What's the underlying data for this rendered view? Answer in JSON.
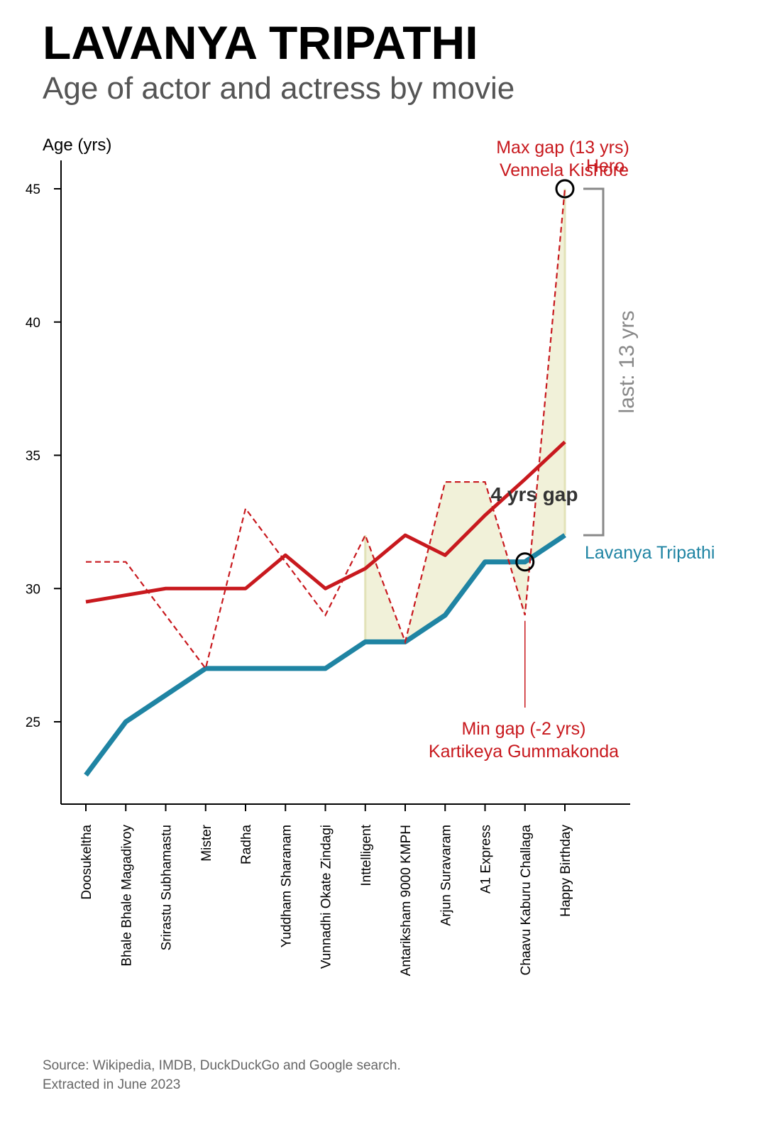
{
  "title": "LAVANYA TRIPATHI",
  "subtitle": "Age of actor and actress by movie",
  "source": {
    "line1": "Source: Wikipedia, IMDB, DuckDuckGo and Google search.",
    "line2": "Extracted in June 2023"
  },
  "colors": {
    "actress": "#1f84a3",
    "actor": "#c8191e",
    "gap_fill": "#efefd2",
    "bracket": "#888888",
    "annotation": "#333333"
  },
  "chart_data": {
    "type": "line",
    "ylabel": "Age (yrs)",
    "ylim": [
      22,
      46
    ],
    "yticks": [
      25,
      30,
      35,
      40,
      45
    ],
    "categories": [
      "Doosukeltha",
      "Bhale Bhale Magadivoy",
      "Srirastu Subhamastu",
      "Mister",
      "Radha",
      "Yuddham Sharanam",
      "Vunnadhi Okate Zindagi",
      "Inttelligent",
      "Antariksham 9000 KMPH",
      "Arjun Suravaram",
      "A1 Express",
      "Chaavu Kaburu Challaga",
      "Happy Birthday"
    ],
    "series": [
      {
        "name": "Lavanya Tripathi",
        "values": [
          23,
          25,
          26,
          27,
          27,
          27,
          27,
          28,
          28,
          29,
          31,
          31,
          32
        ],
        "style": "solid",
        "color": "#1f84a3"
      },
      {
        "name": "Hero",
        "values": [
          31,
          31,
          29,
          27,
          33,
          31,
          29,
          32,
          28,
          34,
          34,
          29,
          45
        ],
        "style": "dashed",
        "color": "#c8191e"
      },
      {
        "values": [
          29.5,
          29.75,
          30,
          30,
          30,
          31.25,
          30,
          30.75,
          32,
          31.25,
          32.75,
          34.1,
          35.5
        ],
        "style": "trend",
        "color": "#c8191e"
      }
    ],
    "annotations": {
      "max_gap_line1": "Max gap (13 yrs)",
      "max_gap_line2": "Vennela Kishore",
      "min_gap_line1": "Min gap (-2 yrs)",
      "min_gap_line2": "Kartikeya Gummakonda",
      "mid_gap": "4 yrs gap",
      "last_gap": "last: 13 yrs",
      "actress_label": "Lavanya Tripathi",
      "actor_label": "Hero",
      "max_index": 12,
      "min_index": 11
    }
  }
}
